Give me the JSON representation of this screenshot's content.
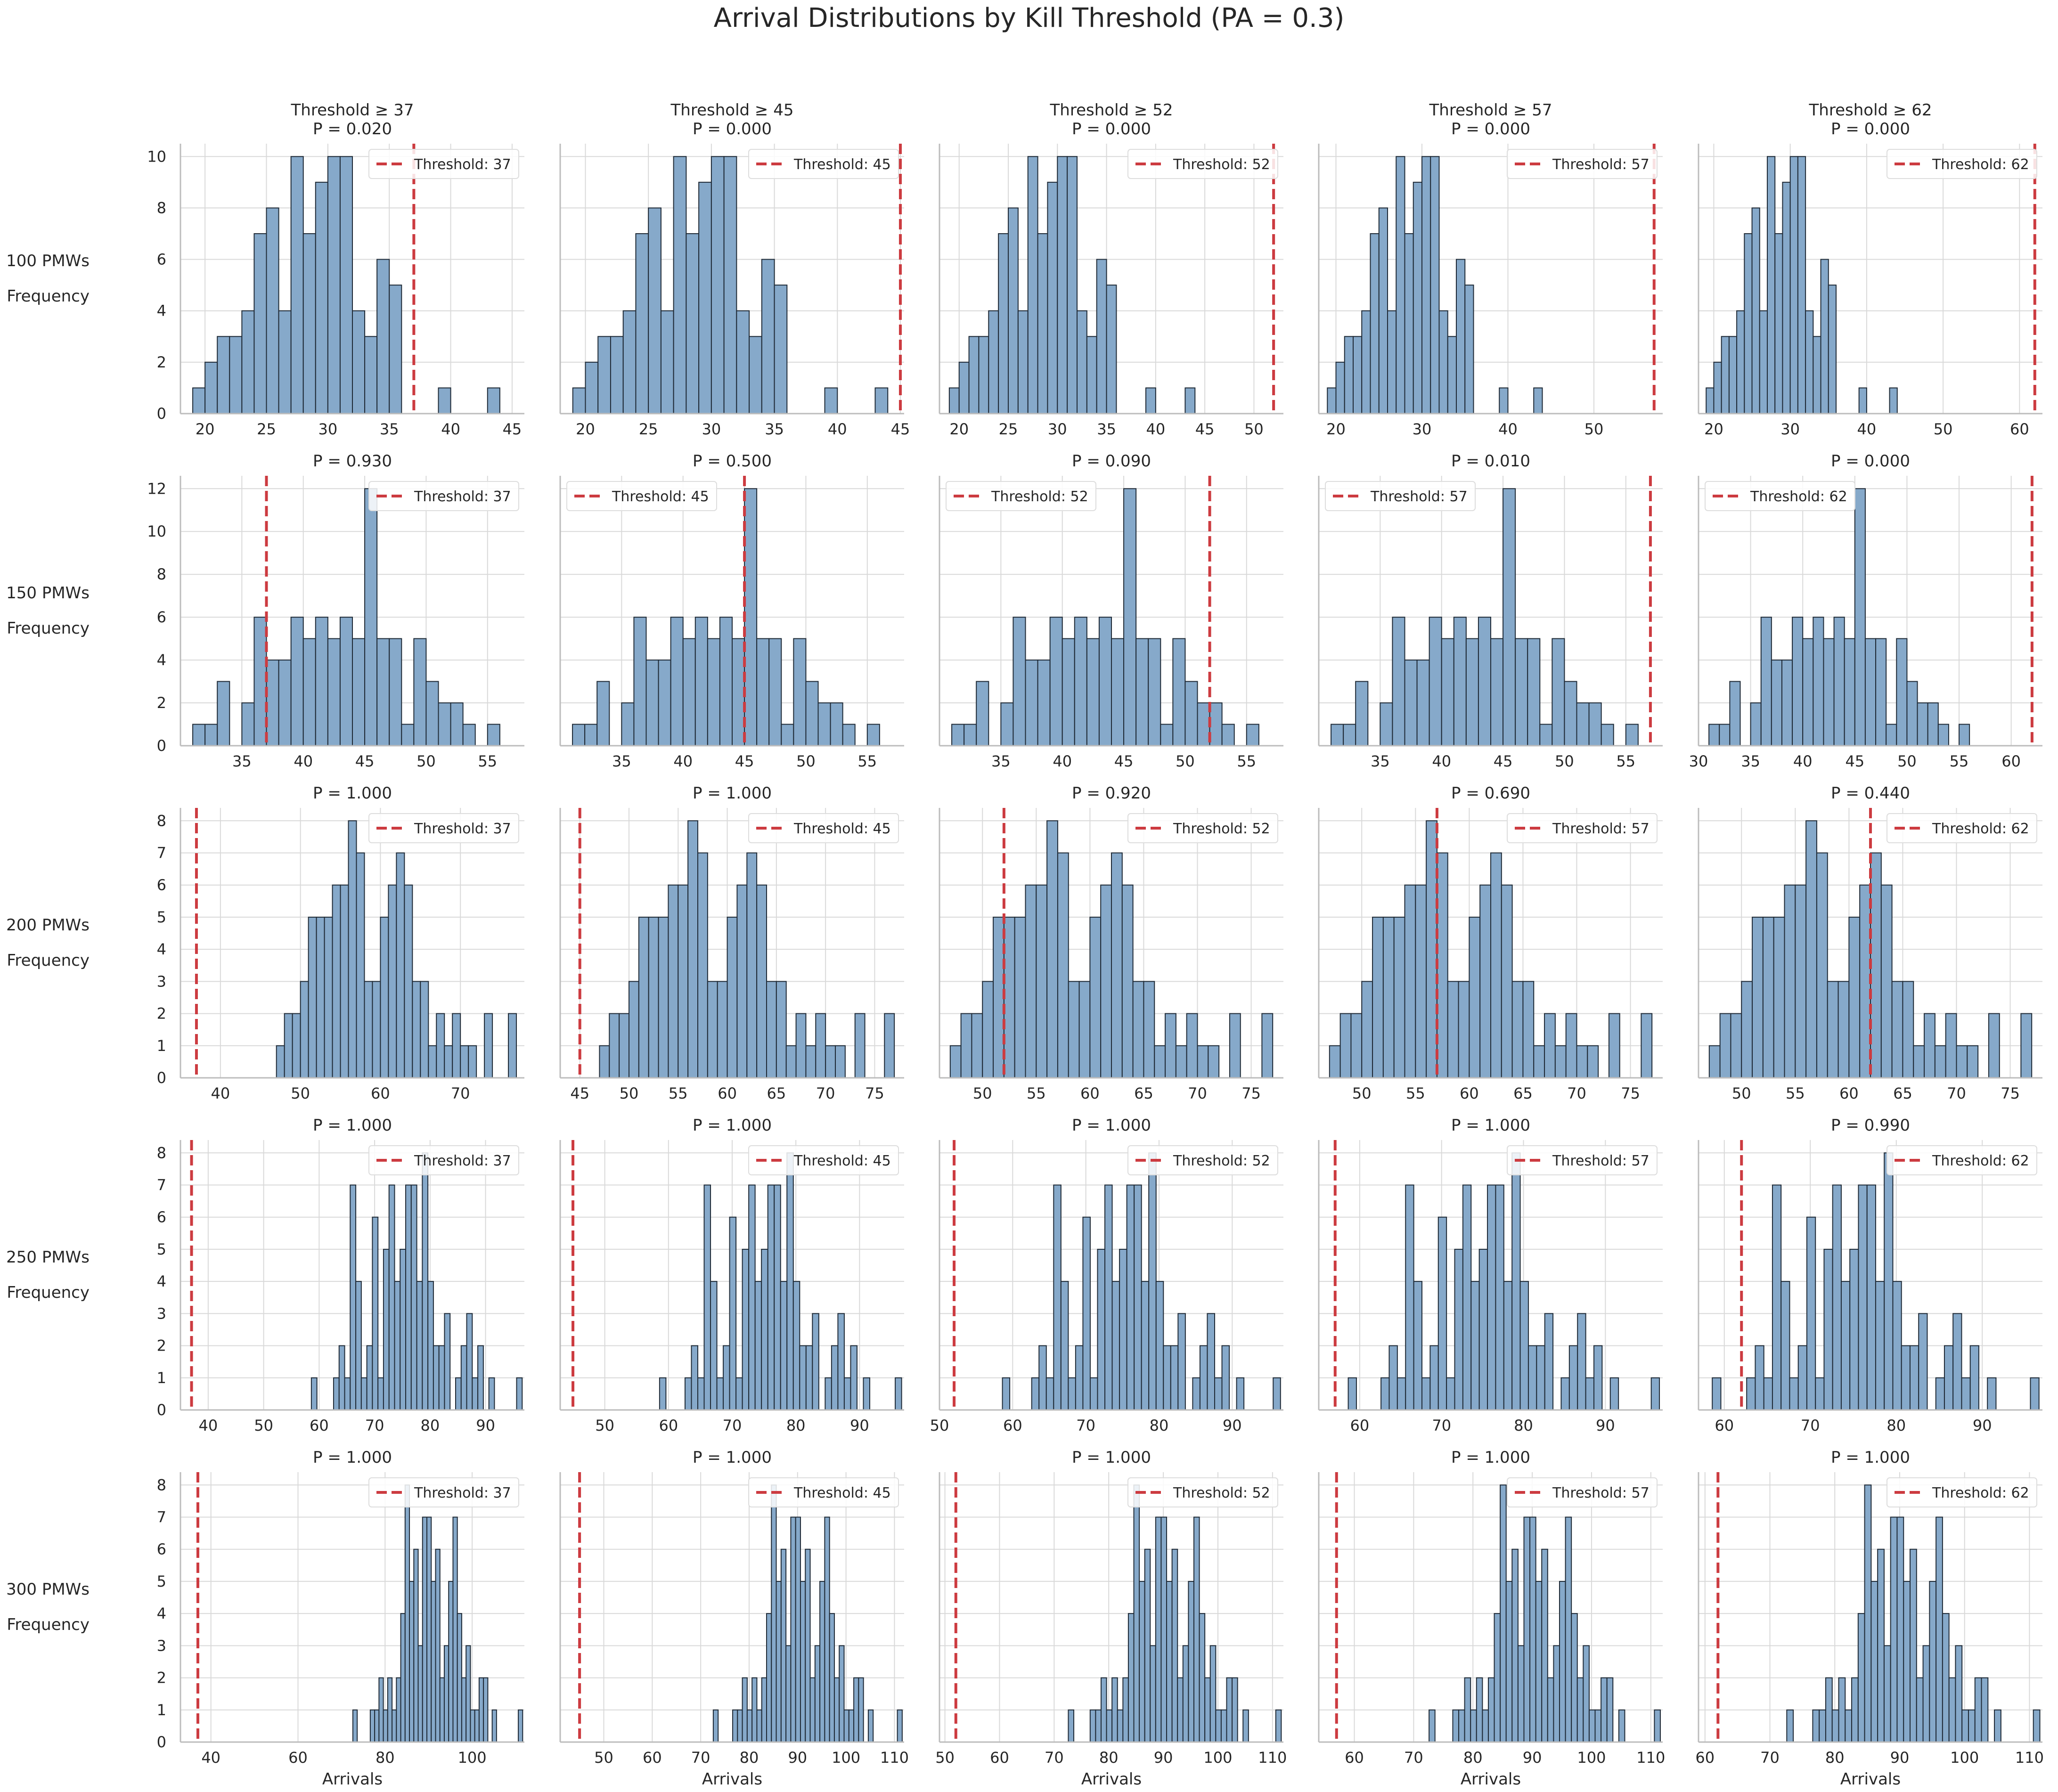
{
  "figure": {
    "title": "Arrival Distributions by Kill Threshold (PA = 0.3)"
  },
  "colors": {
    "bar_fill": "#86a9ca",
    "bar_edge": "#1f2a36",
    "threshold_line": "#cc3b40",
    "grid": "#d9d9d9",
    "axis": "#bcbcbc"
  },
  "chart_data": {
    "type": "histogram-grid",
    "xlabel": "Arrivals",
    "ylabel": "Frequency",
    "legend_location": "upper right (row 2: upper left)",
    "thresholds": [
      37,
      45,
      52,
      57,
      62
    ],
    "column_titles": [
      "Threshold ≥ 37",
      "Threshold ≥ 45",
      "Threshold ≥ 52",
      "Threshold ≥ 57",
      "Threshold ≥ 62"
    ],
    "legend_labels": [
      "Threshold: 37",
      "Threshold: 45",
      "Threshold: 52",
      "Threshold: 57",
      "Threshold: 62"
    ],
    "rows": [
      {
        "label": "100 PMWs",
        "p_values": [
          "P = 0.020",
          "P = 0.000",
          "P = 0.000",
          "P = 0.000",
          "P = 0.000"
        ],
        "yticks": [
          0,
          2,
          4,
          6,
          8,
          10
        ],
        "ylim": [
          0,
          10.5
        ],
        "bins_start": 19,
        "bin_width": 1,
        "counts": [
          1,
          2,
          3,
          3,
          4,
          7,
          8,
          4,
          10,
          7,
          9,
          10,
          10,
          4,
          3,
          6,
          5,
          0,
          0,
          0,
          1,
          0,
          0,
          0,
          1
        ],
        "xticks": [
          [
            20,
            25,
            30,
            35,
            40,
            45
          ],
          [
            20,
            25,
            30,
            35,
            40,
            45
          ],
          [
            20,
            25,
            30,
            35,
            40,
            45,
            50
          ],
          [
            20,
            30,
            40,
            50
          ],
          [
            20,
            30,
            40,
            50,
            60
          ]
        ],
        "xlims": [
          [
            18,
            46
          ],
          [
            18,
            45.3
          ],
          [
            18,
            53
          ],
          [
            18,
            58
          ],
          [
            18,
            63
          ]
        ]
      },
      {
        "label": "150 PMWs",
        "p_values": [
          "P = 0.930",
          "P = 0.500",
          "P = 0.090",
          "P = 0.010",
          "P = 0.000"
        ],
        "yticks": [
          0,
          2,
          4,
          6,
          8,
          10,
          12
        ],
        "ylim": [
          0,
          12.6
        ],
        "bins_start": 31,
        "bin_width": 1,
        "counts": [
          1,
          1,
          3,
          0,
          2,
          6,
          4,
          4,
          6,
          5,
          6,
          5,
          6,
          5,
          12,
          5,
          5,
          1,
          5,
          3,
          2,
          2,
          1,
          0,
          1
        ],
        "xticks": [
          [
            35,
            40,
            45,
            50,
            55
          ],
          [
            35,
            40,
            45,
            50,
            55
          ],
          [
            35,
            40,
            45,
            50,
            55
          ],
          [
            35,
            40,
            45,
            50,
            55
          ],
          [
            30,
            35,
            40,
            45,
            50,
            55,
            60
          ]
        ],
        "xlims": [
          [
            30,
            58
          ],
          [
            30,
            58
          ],
          [
            30,
            58
          ],
          [
            30,
            58
          ],
          [
            30,
            63
          ]
        ]
      },
      {
        "label": "200 PMWs",
        "p_values": [
          "P = 1.000",
          "P = 1.000",
          "P = 0.920",
          "P = 0.690",
          "P = 0.440"
        ],
        "yticks": [
          0,
          1,
          2,
          3,
          4,
          5,
          6,
          7,
          8
        ],
        "ylim": [
          0,
          8.4
        ],
        "bins_start": 47,
        "bin_width": 1,
        "counts": [
          1,
          2,
          2,
          3,
          5,
          5,
          5,
          6,
          6,
          8,
          7,
          3,
          3,
          5,
          6,
          7,
          6,
          3,
          3,
          1,
          2,
          1,
          2,
          1,
          1,
          0,
          2,
          0,
          0,
          2
        ],
        "xticks": [
          [
            40,
            50,
            60,
            70
          ],
          [
            45,
            50,
            55,
            60,
            65,
            70,
            75
          ],
          [
            50,
            55,
            60,
            65,
            70,
            75
          ],
          [
            50,
            55,
            60,
            65,
            70,
            75
          ],
          [
            50,
            55,
            60,
            65,
            70,
            75
          ]
        ],
        "xlims": [
          [
            35,
            78
          ],
          [
            43,
            78
          ],
          [
            46,
            78
          ],
          [
            46,
            78
          ],
          [
            46,
            78
          ]
        ]
      },
      {
        "label": "250 PMWs",
        "p_values": [
          "P = 1.000",
          "P = 1.000",
          "P = 1.000",
          "P = 1.000",
          "P = 0.990"
        ],
        "yticks": [
          0,
          1,
          2,
          3,
          4,
          5,
          6,
          7,
          8
        ],
        "ylim": [
          0,
          8.4
        ],
        "values": [
          [
            58.6,
            1
          ],
          [
            62.6,
            1
          ],
          [
            63.6,
            2
          ],
          [
            64.6,
            1
          ],
          [
            65.6,
            7
          ],
          [
            66.6,
            4
          ],
          [
            67.6,
            1
          ],
          [
            68.6,
            2
          ],
          [
            69.6,
            6
          ],
          [
            70.6,
            1
          ],
          [
            71.6,
            5
          ],
          [
            72.6,
            7
          ],
          [
            73.6,
            4
          ],
          [
            74.6,
            5
          ],
          [
            75.6,
            7
          ],
          [
            76.6,
            7
          ],
          [
            77.6,
            4
          ],
          [
            78.6,
            8
          ],
          [
            79.6,
            4
          ],
          [
            80.6,
            2
          ],
          [
            81.6,
            2
          ],
          [
            82.6,
            3
          ],
          [
            84.6,
            1
          ],
          [
            85.6,
            2
          ],
          [
            86.6,
            3
          ],
          [
            87.6,
            1
          ],
          [
            88.6,
            2
          ],
          [
            90.6,
            1
          ],
          [
            95.6,
            1
          ]
        ],
        "bin_width": 1,
        "xticks": [
          [
            40,
            50,
            60,
            70,
            80,
            90
          ],
          [
            50,
            60,
            70,
            80,
            90
          ],
          [
            50,
            60,
            70,
            80,
            90
          ],
          [
            60,
            70,
            80,
            90
          ],
          [
            60,
            70,
            80,
            90
          ]
        ],
        "xlims": [
          [
            35,
            97
          ],
          [
            43,
            97
          ],
          [
            50,
            97
          ],
          [
            55,
            97
          ],
          [
            57,
            97
          ]
        ]
      },
      {
        "label": "300 PMWs",
        "p_values": [
          "P = 1.000",
          "P = 1.000",
          "P = 1.000",
          "P = 1.000",
          "P = 1.000"
        ],
        "yticks": [
          0,
          1,
          2,
          3,
          4,
          5,
          6,
          7,
          8
        ],
        "ylim": [
          0,
          8.4
        ],
        "values": [
          [
            72.6,
            1
          ],
          [
            76.6,
            1
          ],
          [
            77.6,
            1
          ],
          [
            78.6,
            2
          ],
          [
            79.6,
            1
          ],
          [
            80.6,
            2
          ],
          [
            81.6,
            1
          ],
          [
            82.6,
            2
          ],
          [
            83.6,
            4
          ],
          [
            84.6,
            8
          ],
          [
            85.6,
            5
          ],
          [
            86.6,
            6
          ],
          [
            87.6,
            3
          ],
          [
            88.6,
            7
          ],
          [
            89.6,
            7
          ],
          [
            90.6,
            5
          ],
          [
            91.6,
            6
          ],
          [
            92.6,
            2
          ],
          [
            93.6,
            3
          ],
          [
            94.6,
            5
          ],
          [
            95.6,
            7
          ],
          [
            96.6,
            4
          ],
          [
            97.6,
            2
          ],
          [
            98.6,
            3
          ],
          [
            99.6,
            1
          ],
          [
            100.6,
            1
          ],
          [
            101.6,
            2
          ],
          [
            102.6,
            2
          ],
          [
            104.6,
            1
          ],
          [
            110.6,
            1
          ]
        ],
        "bin_width": 1,
        "xticks": [
          [
            40,
            60,
            80,
            100
          ],
          [
            50,
            60,
            70,
            80,
            90,
            100,
            110
          ],
          [
            50,
            60,
            70,
            80,
            90,
            100,
            110
          ],
          [
            60,
            70,
            80,
            90,
            100,
            110
          ],
          [
            60,
            70,
            80,
            90,
            100,
            110
          ]
        ],
        "xlims": [
          [
            33,
            112
          ],
          [
            41,
            112
          ],
          [
            49,
            112
          ],
          [
            54,
            112
          ],
          [
            59,
            112
          ]
        ]
      }
    ]
  }
}
